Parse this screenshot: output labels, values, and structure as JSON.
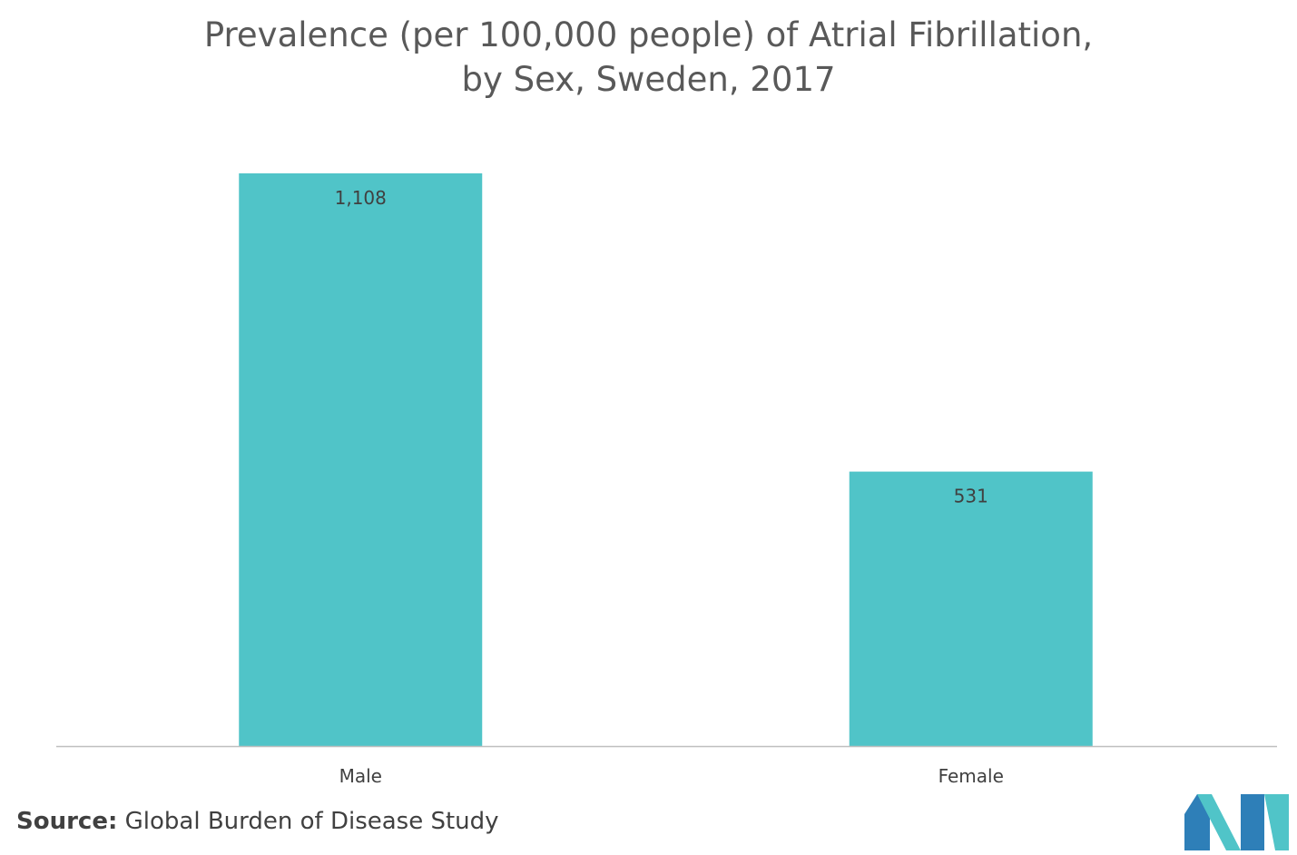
{
  "chart_data": {
    "type": "bar",
    "title_lines": [
      "Prevalence (per 100,000 people) of Atrial Fibrillation,",
      "by Sex, Sweden, 2017"
    ],
    "categories": [
      "Male",
      "Female"
    ],
    "values": [
      1108,
      531
    ],
    "value_labels": [
      "1,108",
      "531"
    ],
    "ylim": [
      0,
      1200
    ],
    "grid": false,
    "legend": "none",
    "bar_color": "#50C4C8",
    "axis_color": "#BFBFBF",
    "label_color": "#404040"
  },
  "source": {
    "label": "Source:",
    "text": "Global Burden of Disease Study"
  },
  "logo": {
    "colors": [
      "#2E7FB8",
      "#50C4C8"
    ]
  }
}
